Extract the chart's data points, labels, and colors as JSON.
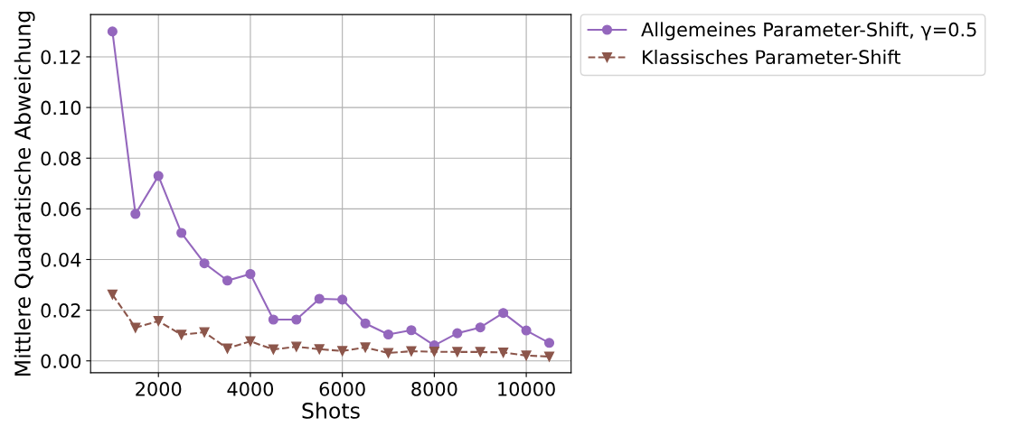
{
  "chart_data": {
    "type": "line",
    "xlabel": "Shots",
    "ylabel": "Mittlere Quadratische Abweichung",
    "x": [
      1000,
      1500,
      2000,
      2500,
      3000,
      3500,
      4000,
      4500,
      5000,
      5500,
      6000,
      6500,
      7000,
      7500,
      8000,
      8500,
      9000,
      9500,
      10000,
      10500
    ],
    "series": [
      {
        "name": "Allgemeines Parameter-Shift, γ=0.5",
        "color": "#9467bd",
        "marker": "circle",
        "line_style": "solid",
        "values": [
          0.13,
          0.058,
          0.073,
          0.0505,
          0.0385,
          0.0317,
          0.0343,
          0.0163,
          0.0163,
          0.0245,
          0.0242,
          0.0148,
          0.0104,
          0.0121,
          0.0061,
          0.0109,
          0.0132,
          0.0189,
          0.012,
          0.0071
        ]
      },
      {
        "name": "Klassisches Parameter-Shift",
        "color": "#8c564b",
        "marker": "triangle",
        "line_style": "dashed",
        "values": [
          0.0262,
          0.0131,
          0.0157,
          0.0103,
          0.0113,
          0.0049,
          0.0077,
          0.0045,
          0.0056,
          0.0046,
          0.0039,
          0.0053,
          0.0031,
          0.0038,
          0.0036,
          0.0035,
          0.0035,
          0.0033,
          0.0021,
          0.0017
        ]
      }
    ],
    "xlim": [
      525,
      10975
    ],
    "ylim": [
      -0.0047,
      0.1367
    ],
    "xticks": [
      2000,
      4000,
      6000,
      8000,
      10000
    ],
    "yticks": [
      {
        "value": 0,
        "label": "0.00"
      },
      {
        "value": 0.02,
        "label": "0.02"
      },
      {
        "value": 0.04,
        "label": "0.04"
      },
      {
        "value": 0.06,
        "label": "0.06"
      },
      {
        "value": 0.08,
        "label": "0.08"
      },
      {
        "value": 0.1,
        "label": "0.10"
      },
      {
        "value": 0.12,
        "label": "0.12"
      }
    ],
    "grid": true,
    "legend": "top right"
  }
}
